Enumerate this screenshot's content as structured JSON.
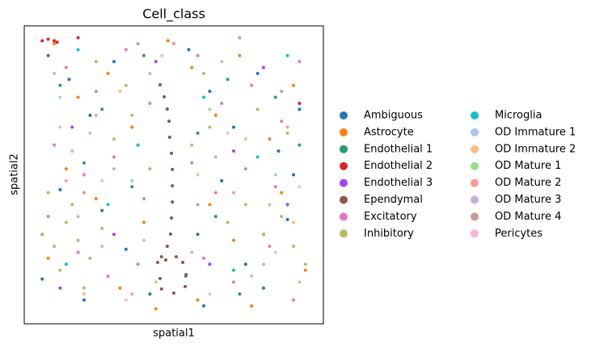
{
  "chart_data": {
    "type": "scatter",
    "title": "Cell_class",
    "x_label": "spatial1",
    "y_label": "spatial2",
    "xlim": [
      0,
      100
    ],
    "ylim": [
      0,
      100
    ],
    "series": [
      {
        "name": "Ambiguous",
        "color": "#1f77b4",
        "x": [
          8,
          15,
          22,
          30,
          38,
          55,
          62,
          70,
          78,
          85,
          92,
          12,
          26,
          34,
          58,
          66,
          74,
          88,
          6,
          20,
          42,
          60,
          80,
          90,
          50
        ],
        "y": [
          90,
          82,
          70,
          88,
          60,
          92,
          78,
          66,
          84,
          58,
          72,
          45,
          38,
          25,
          30,
          48,
          20,
          35,
          15,
          8,
          10,
          6,
          12,
          50,
          94
        ]
      },
      {
        "name": "Astrocyte",
        "color": "#ff7f0e",
        "x": [
          10,
          18,
          28,
          36,
          56,
          64,
          72,
          82,
          90,
          14,
          24,
          40,
          62,
          70,
          86,
          8,
          32,
          58,
          76,
          94,
          48,
          44
        ],
        "y": [
          94,
          76,
          84,
          66,
          86,
          70,
          90,
          62,
          80,
          52,
          42,
          34,
          40,
          28,
          44,
          22,
          12,
          8,
          6,
          18,
          95,
          5
        ]
      },
      {
        "name": "Endothelial 1",
        "color": "#279e68",
        "x": [
          12,
          26,
          40,
          58,
          68,
          84,
          20,
          36,
          64,
          80,
          92,
          6,
          54,
          72
        ],
        "y": [
          80,
          72,
          90,
          64,
          82,
          76,
          54,
          46,
          36,
          30,
          60,
          30,
          16,
          10
        ]
      },
      {
        "name": "Endothelial 2",
        "color": "#d62728",
        "x": [
          6,
          8,
          10,
          11,
          18,
          92
        ],
        "y": [
          95,
          95.5,
          95,
          94.5,
          96,
          74
        ]
      },
      {
        "name": "Endothelial 3",
        "color": "#aa40fc",
        "x": [
          16,
          44,
          70,
          88,
          30,
          62,
          12,
          80
        ],
        "y": [
          66,
          88,
          58,
          40,
          30,
          20,
          12,
          86
        ]
      },
      {
        "name": "Ependymal",
        "color": "#8c564b",
        "x": [
          45.4,
          46.8,
          47.8,
          48.4,
          48.6,
          49.2,
          49.5,
          49.5,
          49.5,
          49.2,
          48.9,
          47.8,
          45.9,
          44.6,
          47.3,
          50.8,
          53.0,
          54.1,
          53.8,
          50.0,
          45.9,
          45.4
        ],
        "y": [
          80.2,
          76.2,
          72.1,
          68.0,
          62.6,
          57.2,
          51.8,
          46.3,
          40.9,
          35.5,
          30.1,
          26.0,
          22.5,
          20.6,
          21.4,
          22.5,
          20.6,
          16.5,
          12.5,
          10.3,
          11.7,
          15.2
        ]
      },
      {
        "name": "Excitatory",
        "color": "#e377c2",
        "x": [
          14,
          24,
          34,
          42,
          58,
          66,
          76,
          86,
          92,
          10,
          20,
          30,
          40,
          56,
          64,
          74,
          84,
          18,
          28,
          38,
          60,
          70,
          82,
          90,
          8
        ],
        "y": [
          86,
          78,
          92,
          74,
          90,
          74,
          80,
          68,
          88,
          60,
          50,
          56,
          42,
          54,
          44,
          52,
          46,
          24,
          16,
          20,
          22,
          14,
          26,
          8,
          36
        ]
      },
      {
        "name": "Inhibitory",
        "color": "#b5bd61",
        "x": [
          6,
          10,
          14,
          18,
          22,
          26,
          12,
          16,
          20,
          8,
          30,
          36,
          56,
          62,
          68,
          74,
          80,
          86,
          90,
          94,
          24,
          34,
          60,
          78,
          88,
          42
        ],
        "y": [
          30,
          26,
          34,
          28,
          22,
          32,
          18,
          40,
          12,
          44,
          62,
          70,
          60,
          66,
          34,
          40,
          30,
          36,
          26,
          20,
          88,
          80,
          84,
          72,
          64,
          52
        ]
      },
      {
        "name": "Microglia",
        "color": "#17becf",
        "x": [
          18,
          38,
          60,
          78,
          28,
          70,
          88,
          14
        ],
        "y": [
          92,
          60,
          76,
          56,
          40,
          18,
          90,
          20
        ]
      },
      {
        "name": "OD Immature 1",
        "color": "#aec7e8",
        "x": [
          22,
          66,
          84,
          40,
          12,
          76
        ],
        "y": [
          64,
          88,
          50,
          28,
          76,
          16
        ]
      },
      {
        "name": "OD Immature 2",
        "color": "#ffbb78",
        "x": [
          32,
          58,
          90,
          20,
          74,
          44
        ],
        "y": [
          78,
          50,
          34,
          10,
          62,
          14
        ]
      },
      {
        "name": "OD Mature 1",
        "color": "#98df8a",
        "x": [
          16,
          36,
          62,
          82,
          26,
          56,
          92,
          10
        ],
        "y": [
          58,
          48,
          72,
          40,
          26,
          24,
          14,
          84
        ]
      },
      {
        "name": "OD Mature 2",
        "color": "#ff9896",
        "x": [
          24,
          50,
          70,
          88,
          36,
          14
        ],
        "y": [
          70,
          94,
          44,
          66,
          10,
          48
        ]
      },
      {
        "name": "OD Mature 3",
        "color": "#c5b0d5",
        "x": [
          30,
          64,
          80,
          42,
          18
        ],
        "y": [
          52,
          56,
          20,
          84,
          36
        ]
      },
      {
        "name": "OD Mature 4",
        "color": "#c49c94",
        "x": [
          38,
          72,
          86,
          20,
          58
        ],
        "y": [
          94,
          96,
          78,
          44,
          40
        ]
      },
      {
        "name": "Pericytes",
        "color": "#f7b6d2",
        "x": [
          26,
          46,
          68,
          84,
          12,
          34,
          62,
          92
        ],
        "y": [
          48,
          90,
          64,
          24,
          66,
          8,
          10,
          46
        ]
      }
    ]
  }
}
